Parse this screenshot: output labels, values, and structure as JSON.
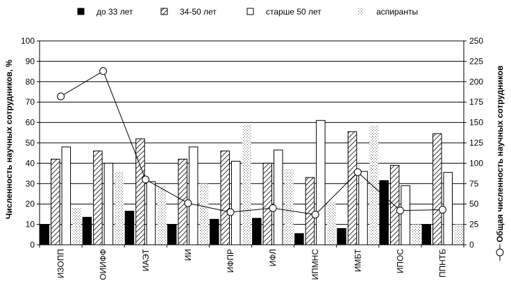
{
  "chart_data": {
    "type": "bar",
    "categories": [
      "ИЗОПП",
      "ОИИФФ",
      "ИАЭТ",
      "ИИ",
      "ИФПР",
      "ИФЛ",
      "ИПМНС",
      "ИМБТ",
      "ИПОС",
      "ППНТБ"
    ],
    "series": [
      {
        "name": "до 33 лет",
        "axis": "left",
        "pattern": "solid-black",
        "values": [
          10,
          13.5,
          16.5,
          10,
          12.5,
          13,
          5.5,
          8,
          31.5,
          10
        ]
      },
      {
        "name": "34-50 лет",
        "axis": "left",
        "pattern": "diagonal-hatch",
        "values": [
          42,
          46,
          52,
          42,
          46,
          40,
          33,
          55.5,
          39,
          54.5
        ]
      },
      {
        "name": "старше 50 лет",
        "axis": "left",
        "pattern": "white",
        "values": [
          48,
          40,
          31,
          48,
          41,
          46.5,
          61,
          36,
          29,
          35.5
        ]
      },
      {
        "name": "аспиранты",
        "axis": "left",
        "pattern": "dotted",
        "values": [
          18,
          36,
          29,
          30,
          59,
          37,
          21,
          58.5,
          10,
          10
        ]
      },
      {
        "name": "",
        "axis": "right",
        "type": "line",
        "marker": "circle-open",
        "values": [
          182,
          213,
          80,
          51,
          40,
          45,
          37,
          89,
          42,
          43
        ]
      }
    ],
    "y_left": {
      "label": "Численность научных сотрудников, %",
      "min": 0,
      "max": 100,
      "ticks": [
        0,
        10,
        20,
        30,
        40,
        50,
        60,
        70,
        80,
        90,
        100
      ]
    },
    "y_right": {
      "label": "Общая численность научных сотрудников",
      "min": 0,
      "max": 250,
      "ticks": [
        0,
        25,
        50,
        75,
        100,
        125,
        150,
        175,
        200,
        225,
        250
      ]
    },
    "grid": true,
    "legend": "top",
    "colors": {
      "bar_stroke": "#000000",
      "grid": "#000000",
      "line": "#000000",
      "background": "#ffffff"
    }
  }
}
